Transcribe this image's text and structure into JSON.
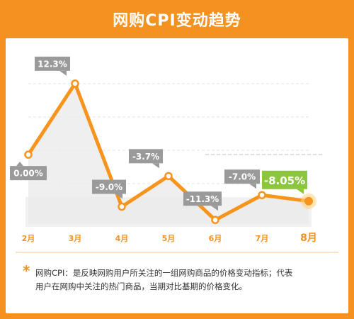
{
  "title": "网购CPI变动趋势",
  "colors": {
    "background": "#f39221",
    "line": "#f7941d",
    "label_bg": "#9a9a9a",
    "last_label_bg": "#8cc63f",
    "month_text": "#f39221",
    "area_fill": "#e9e9e9"
  },
  "chart_data": {
    "type": "line",
    "title": "网购CPI变动趋势",
    "x": [
      "2月",
      "3月",
      "4月",
      "5月",
      "6月",
      "7月",
      "8月"
    ],
    "series": [
      {
        "values": [
          0.0,
          12.3,
          -9.0,
          -3.7,
          -11.3,
          -7.0,
          -8.05
        ],
        "labels": [
          "0.00%",
          "12.3%",
          "-9.0%",
          "-3.7%",
          "-11.3%",
          "-7.0%",
          "-8.05%"
        ]
      }
    ],
    "ylim": [
      -12,
      14
    ],
    "grid": true,
    "xlabel": "",
    "ylabel": ""
  },
  "note": {
    "line1": "网购CPI：是反映网购用户所关注的一组网购商品的价格变动指标；代表",
    "line2": "用户在网购中关注的热门商品，当期对比基期的价格变化。"
  }
}
